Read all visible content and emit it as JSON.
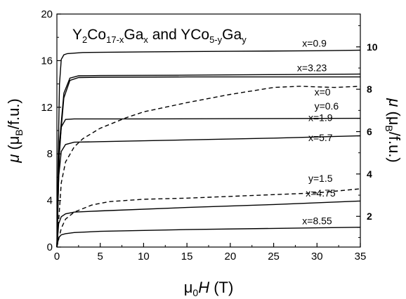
{
  "chart_data": {
    "type": "line",
    "title_parts": {
      "a1": "Y",
      "a1s": "2",
      "a2": "Co",
      "a2s": "17-x",
      "a3": "Ga",
      "a3s": "x",
      "mid": " and ",
      "b1": "YCo",
      "b1s": "5-y",
      "b2": "Ga",
      "b2s": "y"
    },
    "xlabel": {
      "pre": "μ",
      "sub": "0",
      "ital": "H",
      "post": " (T)"
    },
    "ylabel_left": {
      "mu": "μ",
      "pre": " (μ",
      "sub": "B",
      "post": "/f.u.)"
    },
    "ylabel_right": {
      "mu": "μ",
      "pre": " (μ",
      "sub": "B",
      "post": "/f.u.)"
    },
    "xlim": [
      0,
      35
    ],
    "ylim_left": [
      0,
      20
    ],
    "ylim_right": [
      0.55,
      11.55
    ],
    "x_ticks": [
      "0",
      "5",
      "10",
      "15",
      "20",
      "25",
      "30",
      "35"
    ],
    "y_ticks_left": [
      "0",
      "4",
      "8",
      "12",
      "16",
      "20"
    ],
    "y_ticks_right": [
      "2",
      "4",
      "6",
      "8",
      "10"
    ],
    "grid": false,
    "series": [
      {
        "name": "x=0.9",
        "axis": "left",
        "style": "solid",
        "points": [
          [
            0,
            0
          ],
          [
            0.15,
            8
          ],
          [
            0.3,
            14
          ],
          [
            0.5,
            16.1
          ],
          [
            0.8,
            16.5
          ],
          [
            1.2,
            16.6
          ],
          [
            3,
            16.7
          ],
          [
            10,
            16.75
          ],
          [
            20,
            16.8
          ],
          [
            30,
            16.85
          ],
          [
            35,
            16.9
          ]
        ]
      },
      {
        "name": "x=3.23",
        "axis": "left",
        "style": "solid",
        "points": [
          [
            0,
            0
          ],
          [
            0.3,
            9
          ],
          [
            0.8,
            13.2
          ],
          [
            1.5,
            14.5
          ],
          [
            2.5,
            14.7
          ],
          [
            5,
            14.72
          ],
          [
            15,
            14.75
          ],
          [
            25,
            14.8
          ],
          [
            35,
            14.85
          ]
        ]
      },
      {
        "name": "x=0",
        "axis": "left",
        "style": "solid",
        "points": [
          [
            0,
            0
          ],
          [
            0.3,
            8.5
          ],
          [
            0.8,
            12.8
          ],
          [
            1.5,
            14.3
          ],
          [
            2.5,
            14.55
          ],
          [
            5,
            14.58
          ],
          [
            15,
            14.6
          ],
          [
            25,
            14.6
          ],
          [
            35,
            14.6
          ]
        ]
      },
      {
        "name": "x=1.9",
        "axis": "left",
        "style": "solid",
        "points": [
          [
            0,
            0
          ],
          [
            0.2,
            7
          ],
          [
            0.5,
            10.3
          ],
          [
            1,
            10.95
          ],
          [
            2,
            11
          ],
          [
            10,
            11
          ],
          [
            20,
            11.02
          ],
          [
            35,
            11.05
          ]
        ]
      },
      {
        "name": "x=5.7",
        "axis": "left",
        "style": "solid",
        "points": [
          [
            0,
            0
          ],
          [
            0.2,
            6
          ],
          [
            0.5,
            8.2
          ],
          [
            1,
            8.8
          ],
          [
            2,
            9
          ],
          [
            5,
            9.05
          ],
          [
            15,
            9.2
          ],
          [
            25,
            9.35
          ],
          [
            35,
            9.55
          ]
        ]
      },
      {
        "name": "x=4.75",
        "axis": "left",
        "style": "solid",
        "points": [
          [
            0,
            0
          ],
          [
            0.2,
            2
          ],
          [
            0.5,
            2.6
          ],
          [
            1,
            2.85
          ],
          [
            2,
            3
          ],
          [
            5,
            3.1
          ],
          [
            15,
            3.4
          ],
          [
            25,
            3.65
          ],
          [
            35,
            3.95
          ]
        ]
      },
      {
        "name": "x=8.55",
        "axis": "left",
        "style": "solid",
        "points": [
          [
            0,
            0
          ],
          [
            0.2,
            0.8
          ],
          [
            0.5,
            1.05
          ],
          [
            1,
            1.15
          ],
          [
            2,
            1.25
          ],
          [
            5,
            1.35
          ],
          [
            15,
            1.5
          ],
          [
            25,
            1.6
          ],
          [
            35,
            1.7
          ]
        ]
      },
      {
        "name": "y=0.6",
        "axis": "left",
        "style": "dashed",
        "points": [
          [
            0,
            0
          ],
          [
            0.5,
            5.5
          ],
          [
            1,
            7.3
          ],
          [
            2,
            8.6
          ],
          [
            3,
            9.3
          ],
          [
            5,
            10.2
          ],
          [
            8,
            11.1
          ],
          [
            10,
            11.6
          ],
          [
            15,
            12.4
          ],
          [
            20,
            13.1
          ],
          [
            25,
            13.7
          ],
          [
            28,
            13.8
          ],
          [
            32,
            13.7
          ],
          [
            35,
            13.8
          ]
        ]
      },
      {
        "name": "y=1.5",
        "axis": "left",
        "style": "dashed",
        "points": [
          [
            0,
            0
          ],
          [
            0.5,
            1.6
          ],
          [
            1,
            2.4
          ],
          [
            2,
            3.0
          ],
          [
            4,
            3.6
          ],
          [
            6,
            3.9
          ],
          [
            8,
            4.0
          ],
          [
            10,
            4.1
          ],
          [
            15,
            4.2
          ],
          [
            20,
            4.35
          ],
          [
            25,
            4.5
          ],
          [
            30,
            4.65
          ],
          [
            35,
            5.0
          ]
        ]
      }
    ],
    "curve_labels": [
      {
        "text": "x=0.9",
        "x": 28.3,
        "y": 17.2
      },
      {
        "text": "x=3.23",
        "x": 27.7,
        "y": 15.1
      },
      {
        "text": "x=0",
        "x": 29.7,
        "y": 13.0
      },
      {
        "text": "y=0.6",
        "x": 29.7,
        "y": 11.8
      },
      {
        "text": "x=1.9",
        "x": 29.0,
        "y": 10.8
      },
      {
        "text": "x=5.7",
        "x": 29.0,
        "y": 9.1
      },
      {
        "text": "y=1.5",
        "x": 29.0,
        "y": 5.6
      },
      {
        "text": "x=4.75",
        "x": 28.7,
        "y": 4.35
      },
      {
        "text": "x=8.55",
        "x": 28.3,
        "y": 1.95
      }
    ]
  }
}
